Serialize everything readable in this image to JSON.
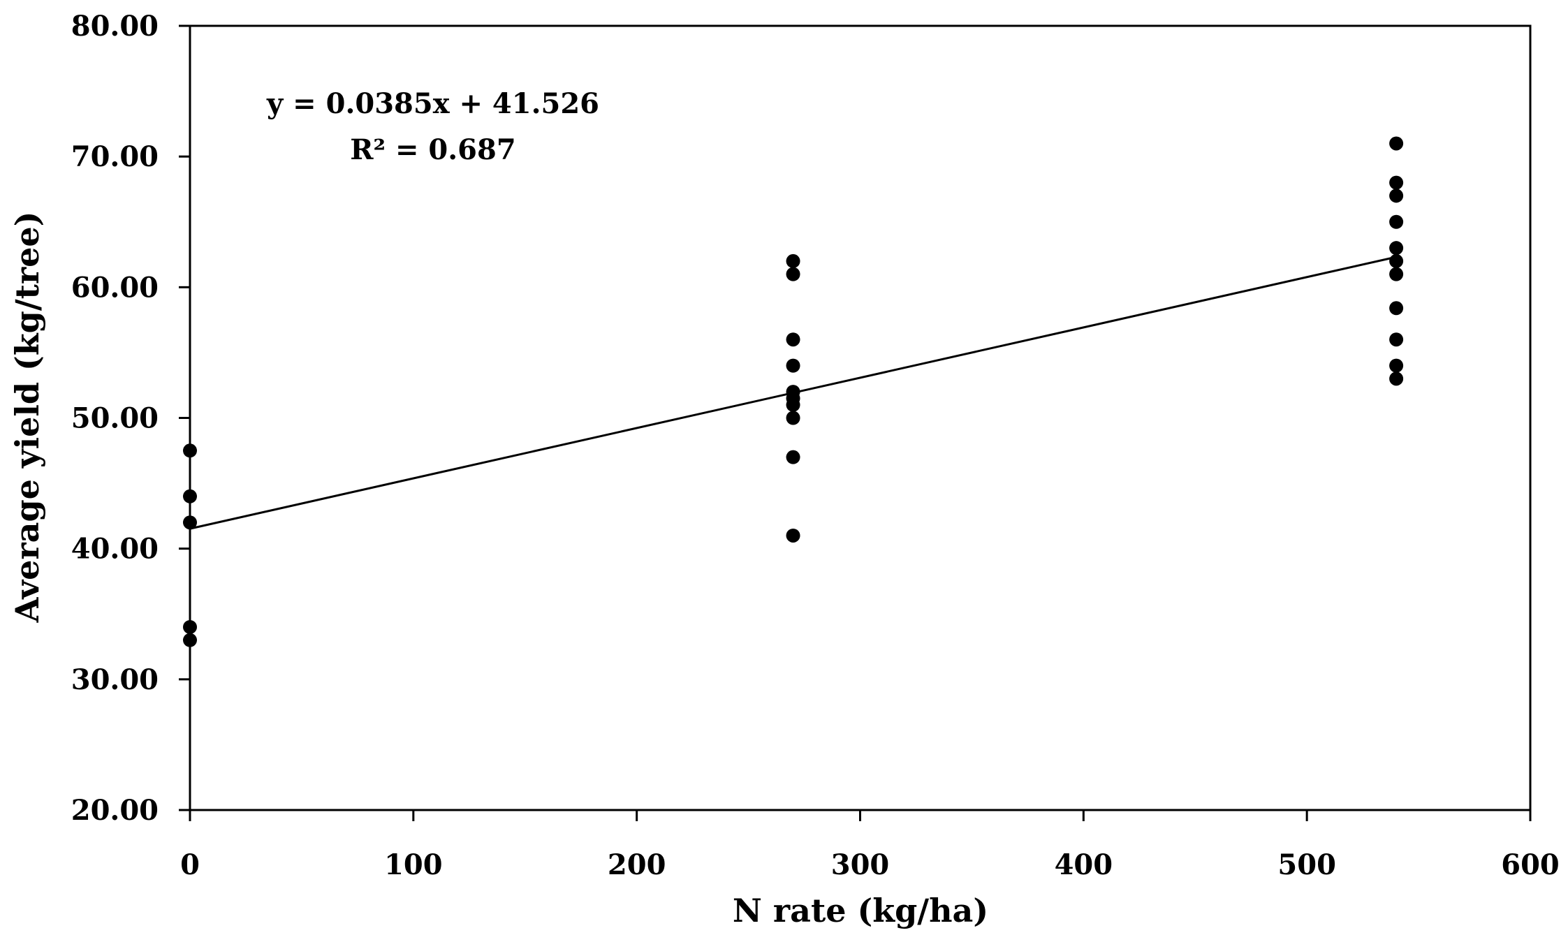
{
  "chart_data": {
    "type": "scatter",
    "title": "",
    "xlabel": "N rate (kg/ha)",
    "ylabel": "Average yield (kg/tree)",
    "xlim": [
      0,
      600
    ],
    "ylim": [
      20,
      80
    ],
    "x_ticks": [
      0,
      100,
      200,
      300,
      400,
      500,
      600
    ],
    "x_tick_labels": [
      "0",
      "100",
      "200",
      "300",
      "400",
      "500",
      "600"
    ],
    "y_ticks": [
      20,
      30,
      40,
      50,
      60,
      70,
      80
    ],
    "y_tick_labels": [
      "20.00",
      "30.00",
      "40.00",
      "50.00",
      "60.00",
      "70.00",
      "80.00"
    ],
    "grid": false,
    "legend": "none",
    "series": [
      {
        "points": [
          {
            "x": 0,
            "y": 47.5
          },
          {
            "x": 0,
            "y": 44
          },
          {
            "x": 0,
            "y": 42
          },
          {
            "x": 0,
            "y": 34
          },
          {
            "x": 0,
            "y": 33
          },
          {
            "x": 270,
            "y": 62
          },
          {
            "x": 270,
            "y": 61
          },
          {
            "x": 270,
            "y": 56
          },
          {
            "x": 270,
            "y": 54
          },
          {
            "x": 270,
            "y": 52
          },
          {
            "x": 270,
            "y": 51.5
          },
          {
            "x": 270,
            "y": 51
          },
          {
            "x": 270,
            "y": 50
          },
          {
            "x": 270,
            "y": 47
          },
          {
            "x": 270,
            "y": 41
          },
          {
            "x": 540,
            "y": 71
          },
          {
            "x": 540,
            "y": 68
          },
          {
            "x": 540,
            "y": 67
          },
          {
            "x": 540,
            "y": 65
          },
          {
            "x": 540,
            "y": 63
          },
          {
            "x": 540,
            "y": 62
          },
          {
            "x": 540,
            "y": 61
          },
          {
            "x": 540,
            "y": 58.4
          },
          {
            "x": 540,
            "y": 56
          },
          {
            "x": 540,
            "y": 54
          },
          {
            "x": 540,
            "y": 53
          }
        ],
        "color": "#000000"
      }
    ],
    "trendline": {
      "type": "linear",
      "slope": 0.0385,
      "intercept": 41.526,
      "x_range": [
        0,
        540
      ],
      "color": "#000000"
    },
    "annotations": {
      "equation": "y = 0.0385x + 41.526",
      "r_squared": "R² = 0.687"
    },
    "colors": {
      "axis": "#000000",
      "background": "#ffffff"
    }
  }
}
